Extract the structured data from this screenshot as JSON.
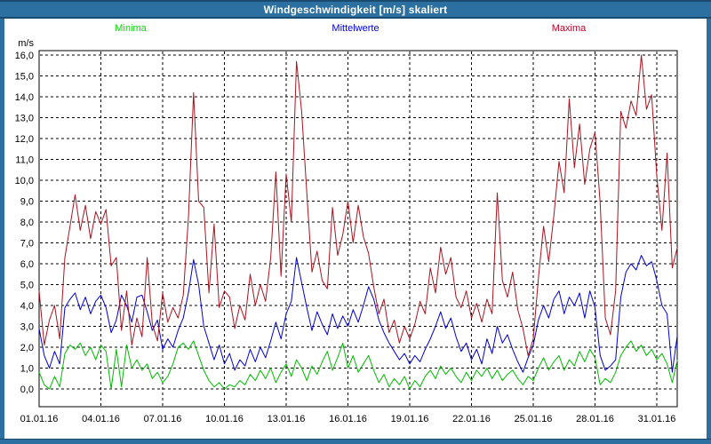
{
  "window": {
    "title": "Windgeschwindigkeit [m/s] skaliert"
  },
  "legend": {
    "minima": "Minima",
    "mittelwerte": "Mittelwerte",
    "maxima": "Maxima"
  },
  "colors": {
    "frame_blue": "#2b70a0",
    "frame_dark_edge": "#1a4a6e",
    "title_text": "#ffffff",
    "legend_minima": "#00dd00",
    "legend_mittelwerte": "#0000dd",
    "legend_maxima": "#c00028",
    "axis_text": "#000000",
    "grid": "#000000",
    "plot_background": "#ffffff"
  },
  "chart_data": {
    "type": "line",
    "title": "Windgeschwindigkeit [m/s] skaliert",
    "xlabel": "",
    "ylabel": "m/s",
    "ylim": [
      0.0,
      16.0
    ],
    "ytick_step": 1.0,
    "ytick_labels_top_to_bottom": [
      "16,0",
      "15,0",
      "14,0",
      "13,0",
      "12,0",
      "11,0",
      "10,0",
      "9,0",
      "8,0",
      "7,0",
      "6,0",
      "5,0",
      "4,0",
      "3,0",
      "2,0",
      "1,0",
      "0,0"
    ],
    "xtick_labels": [
      "01.01.16",
      "04.01.16",
      "07.01.16",
      "10.01.16",
      "13.01.16",
      "16.01.16",
      "19.01.16",
      "22.01.16",
      "25.01.16",
      "28.01.16",
      "31.01.16"
    ],
    "xtick_days": [
      0,
      3,
      6,
      9,
      12,
      15,
      18,
      21,
      24,
      27,
      30
    ],
    "x_total_days": 31,
    "x_days_per_point": 0.25,
    "grid": "dashed",
    "legend_position": "top",
    "series": [
      {
        "name": "Minima",
        "color": "#00bb00",
        "values": [
          0.8,
          0.2,
          0.0,
          0.6,
          0.1,
          1.7,
          2.1,
          1.9,
          2.2,
          1.6,
          2.0,
          1.4,
          2.1,
          1.8,
          0.0,
          1.9,
          0.1,
          2.1,
          1.0,
          1.4,
          0.9,
          1.2,
          0.5,
          0.8,
          0.3,
          0.6,
          1.2,
          2.0,
          2.2,
          1.9,
          2.3,
          1.6,
          0.9,
          0.4,
          0.1,
          0.3,
          0.0,
          0.2,
          0.1,
          0.4,
          0.2,
          0.7,
          0.4,
          0.9,
          0.5,
          1.0,
          0.3,
          0.8,
          1.2,
          0.6,
          1.4,
          1.0,
          0.4,
          1.1,
          0.7,
          1.3,
          1.8,
          0.9,
          1.5,
          2.2,
          1.0,
          1.6,
          0.8,
          1.2,
          1.6,
          0.9,
          0.3,
          0.7,
          0.1,
          0.5,
          0.2,
          0.6,
          0.0,
          0.4,
          0.1,
          0.6,
          0.9,
          0.5,
          1.1,
          0.7,
          1.0,
          0.6,
          0.3,
          0.8,
          0.4,
          0.9,
          0.6,
          1.0,
          0.5,
          0.9,
          0.4,
          0.7,
          0.9,
          0.5,
          0.2,
          0.6,
          0.4,
          1.0,
          1.5,
          0.9,
          1.3,
          1.6,
          0.9,
          1.4,
          1.1,
          1.8,
          1.3,
          1.9,
          1.5,
          0.2,
          0.5,
          0.3,
          0.8,
          1.6,
          2.0,
          2.3,
          1.8,
          2.1,
          1.6,
          1.9,
          1.4,
          1.7,
          1.2,
          0.3,
          1.4
        ]
      },
      {
        "name": "Mittelwerte",
        "color": "#0000cc",
        "values": [
          2.9,
          1.6,
          1.0,
          1.8,
          1.2,
          3.9,
          4.3,
          4.6,
          3.8,
          4.4,
          3.6,
          4.2,
          4.5,
          3.9,
          2.7,
          3.3,
          4.5,
          4.0,
          3.2,
          4.4,
          4.5,
          3.7,
          2.8,
          3.3,
          1.9,
          2.4,
          2.0,
          2.8,
          3.4,
          4.6,
          6.2,
          5.0,
          3.0,
          2.2,
          1.4,
          2.1,
          1.2,
          1.7,
          0.9,
          1.4,
          1.1,
          1.9,
          1.3,
          2.0,
          1.5,
          2.3,
          3.2,
          2.4,
          3.6,
          4.2,
          6.3,
          5.1,
          3.9,
          2.8,
          3.7,
          3.1,
          2.6,
          3.6,
          2.9,
          3.5,
          3.0,
          3.8,
          3.2,
          4.0,
          4.9,
          4.3,
          3.3,
          2.7,
          2.2,
          1.8,
          1.4,
          1.7,
          1.2,
          1.6,
          1.3,
          1.9,
          2.4,
          3.0,
          3.7,
          2.9,
          3.4,
          2.5,
          1.8,
          2.2,
          1.4,
          1.9,
          1.2,
          2.4,
          1.7,
          3.0,
          2.2,
          2.6,
          1.9,
          1.3,
          0.8,
          1.5,
          2.1,
          3.3,
          4.0,
          3.4,
          4.3,
          4.7,
          3.6,
          4.4,
          4.0,
          4.6,
          3.4,
          4.7,
          3.9,
          1.6,
          0.9,
          1.1,
          1.4,
          4.4,
          5.6,
          6.0,
          5.7,
          6.4,
          5.9,
          6.1,
          5.2,
          4.0,
          3.6,
          0.8,
          2.6
        ]
      },
      {
        "name": "Maxima",
        "color": "#a81420",
        "values": [
          4.7,
          2.1,
          3.3,
          4.0,
          2.4,
          6.3,
          7.8,
          9.3,
          7.6,
          8.8,
          7.2,
          8.5,
          7.9,
          8.6,
          5.9,
          6.3,
          2.8,
          4.7,
          2.1,
          3.4,
          2.5,
          6.3,
          3.1,
          2.3,
          4.6,
          3.2,
          3.9,
          3.4,
          4.5,
          8.2,
          14.2,
          9.0,
          8.7,
          4.6,
          7.9,
          3.9,
          4.7,
          4.4,
          2.9,
          4.0,
          3.3,
          5.5,
          4.0,
          5.0,
          4.2,
          6.3,
          10.4,
          5.4,
          10.3,
          8.0,
          15.7,
          13.3,
          9.4,
          5.6,
          6.6,
          5.2,
          4.8,
          8.7,
          6.4,
          7.4,
          9.0,
          7.0,
          8.8,
          7.3,
          6.5,
          4.9,
          3.6,
          4.3,
          2.7,
          3.3,
          2.2,
          3.0,
          2.4,
          3.1,
          4.2,
          3.6,
          5.8,
          4.6,
          6.8,
          5.5,
          6.3,
          4.4,
          3.9,
          4.7,
          3.4,
          4.1,
          3.2,
          4.3,
          3.6,
          9.4,
          5.2,
          4.4,
          5.6,
          3.8,
          2.9,
          1.6,
          2.4,
          5.3,
          7.8,
          6.1,
          8.3,
          10.9,
          9.4,
          13.9,
          10.6,
          12.7,
          9.8,
          11.5,
          12.3,
          8.9,
          3.4,
          2.6,
          4.7,
          13.3,
          12.5,
          13.8,
          13.1,
          16.0,
          13.4,
          14.1,
          10.2,
          7.6,
          11.3,
          5.8,
          6.8
        ]
      }
    ]
  }
}
